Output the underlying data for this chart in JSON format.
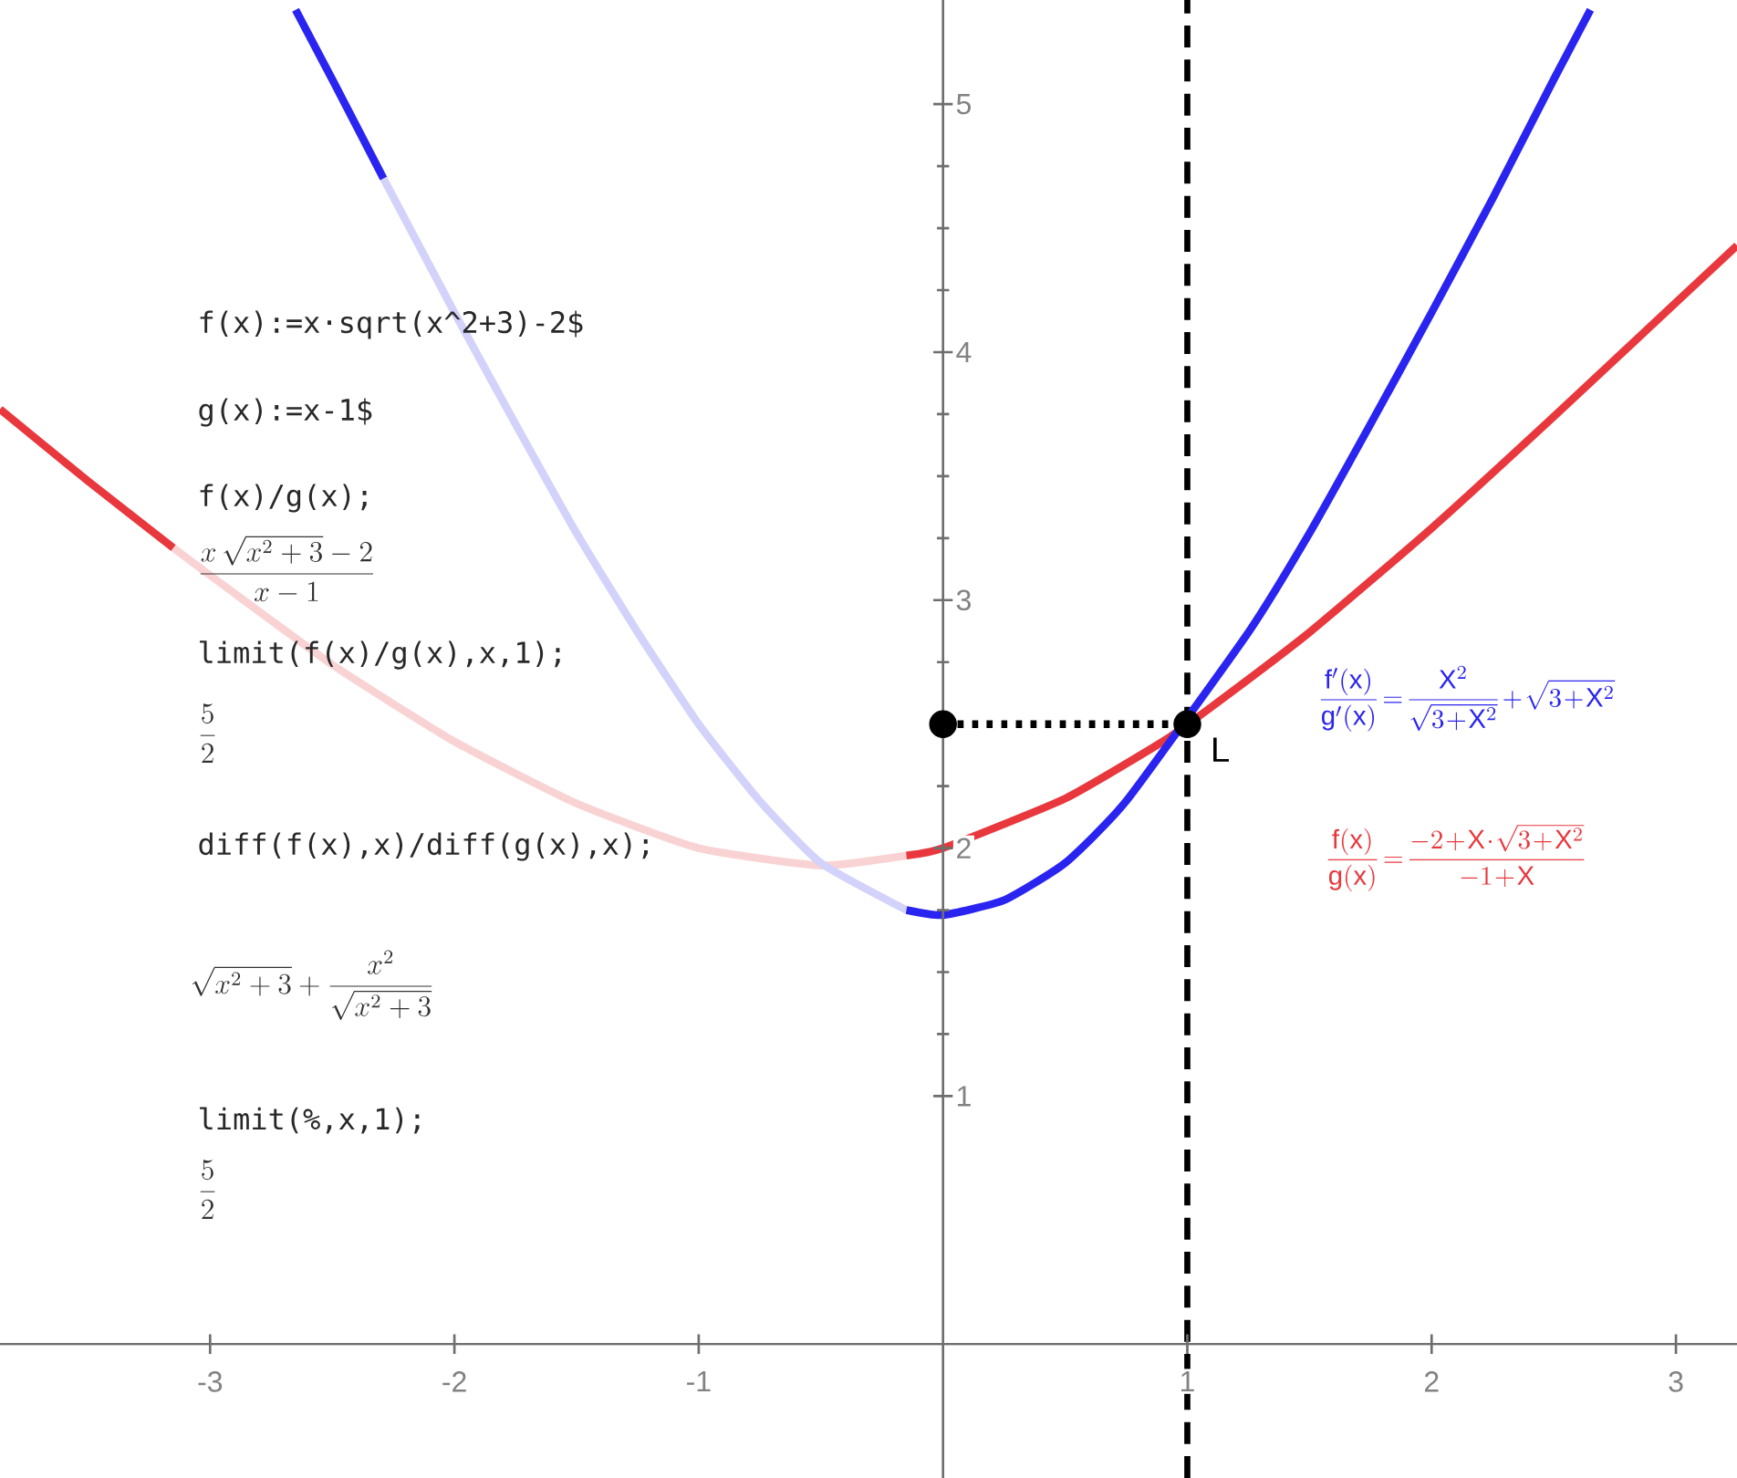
{
  "chart_data": {
    "type": "line",
    "xlim": [
      -3.86,
      3.25
    ],
    "ylim": [
      -0.54,
      5.42
    ],
    "xticks": [
      -3,
      -2,
      -1,
      1,
      2,
      3
    ],
    "yticks": [
      1,
      2,
      3,
      4,
      5
    ],
    "series": [
      {
        "color": "#e8383d",
        "x": [
          -3.86,
          -3.5,
          -3.15
        ],
        "values": [
          3.77,
          3.48,
          3.21
        ]
      },
      {
        "color": "#f9d3d4",
        "x": [
          -3.15,
          -3.0,
          -2.5,
          -2.0,
          -1.5,
          -1.0,
          -0.5,
          -0.15
        ],
        "values": [
          3.21,
          3.1,
          2.74,
          2.43,
          2.18,
          2.0,
          1.93,
          1.97
        ]
      },
      {
        "color": "#e8383d",
        "x": [
          -0.15,
          0.0,
          0.5,
          0.9,
          1.0,
          1.1,
          1.5,
          2.0,
          2.5,
          3.0,
          3.25
        ],
        "values": [
          1.97,
          2.0,
          2.2,
          2.43,
          null,
          2.57,
          2.87,
          3.29,
          3.74,
          4.2,
          4.43
        ]
      },
      {
        "color": "#2a24f0",
        "x": [
          -2.65,
          -2.5,
          -2.29
        ],
        "values": [
          5.38,
          5.1,
          4.7
        ]
      },
      {
        "color": "#d2d2fa",
        "x": [
          -2.29,
          -2.0,
          -1.75,
          -1.5,
          -1.25,
          -1.0,
          -0.75,
          -0.5,
          -0.15
        ],
        "values": [
          4.7,
          4.16,
          3.71,
          3.27,
          2.87,
          2.5,
          2.19,
          1.94,
          1.75
        ]
      },
      {
        "color": "#2a24f0",
        "x": [
          -0.15,
          0.0,
          0.25,
          0.5,
          0.75,
          1.0,
          1.25,
          1.5,
          1.75,
          2.0,
          2.25,
          2.5,
          2.65
        ],
        "values": [
          1.75,
          1.73,
          1.79,
          1.94,
          2.19,
          null,
          2.87,
          3.27,
          3.71,
          4.16,
          4.62,
          5.1,
          5.38
        ]
      },
      {
        "color": "#000000",
        "line_style": "dotted",
        "x": [
          0,
          1
        ],
        "values": [
          2.5,
          2.5
        ]
      },
      {
        "type": "scatter",
        "marker": "circle",
        "color": "#000000",
        "x": [
          0,
          1
        ],
        "values": [
          2.5,
          2.5
        ]
      }
    ],
    "ref_lines": [
      {
        "axis": "x",
        "value": 1,
        "color": "#000000",
        "line_style": "dashed"
      }
    ],
    "annotations": [
      "f(x):=x·sqrt(x^2+3)-2$",
      "g(x):=x-1$",
      "f(x)/g(x);",
      "\\frac{x\\,\\sqrt{x^{2}+3}-2}{x-1}",
      "limit(f(x)/g(x),x,1);",
      "\\frac{5}{2}",
      "diff(f(x),x)/diff(g(x),x);",
      "\\sqrt{x^{2}+3}+\\frac{x^{2}}{\\sqrt{x^{2}+3}}",
      "limit(%,x,1);",
      "\\frac{5}{2}",
      {
        "text": "L",
        "x": 1,
        "y": 2.5
      },
      "\\frac{\\mathrm{f'(x)}}{\\mathrm{g'(x)}}=\\frac{\\mathrm{X}^{2}}{\\sqrt{3+\\mathrm{X}^{2}}}+\\sqrt{3+\\mathrm{X}^{2}}",
      "\\frac{\\mathrm{f(x)}}{\\mathrm{g(x)}}=\\frac{-2+\\mathrm{X}\\cdot\\sqrt{3+\\mathrm{X}^{2}}}{-1+\\mathrm{X}}"
    ]
  }
}
